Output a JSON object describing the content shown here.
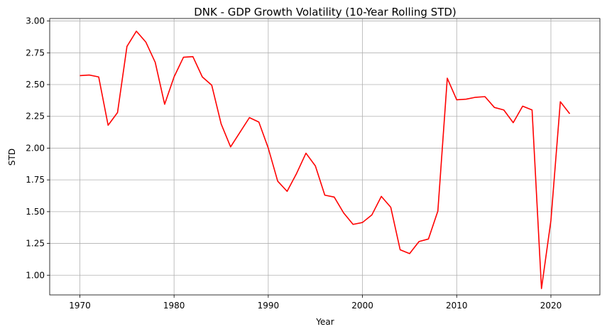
{
  "chart_data": {
    "type": "line",
    "title": "DNK - GDP Growth Volatility (10-Year Rolling STD)",
    "xlabel": "Year",
    "ylabel": "STD",
    "xlim": [
      1966.8,
      2025.2
    ],
    "ylim": [
      0.845,
      3.02
    ],
    "xticks": [
      1970,
      1980,
      1990,
      2000,
      2010,
      2020
    ],
    "yticks": [
      1.0,
      1.25,
      1.5,
      1.75,
      2.0,
      2.25,
      2.5,
      2.75,
      3.0
    ],
    "grid": true,
    "series": [
      {
        "color": "#ff0000",
        "x": [
          1970,
          1971,
          1972,
          1973,
          1974,
          1975,
          1976,
          1977,
          1978,
          1979,
          1980,
          1981,
          1982,
          1983,
          1984,
          1985,
          1986,
          1987,
          1988,
          1989,
          1990,
          1991,
          1992,
          1993,
          1994,
          1995,
          1996,
          1997,
          1998,
          1999,
          2000,
          2001,
          2002,
          2003,
          2004,
          2005,
          2006,
          2007,
          2008,
          2009,
          2010,
          2011,
          2012,
          2013,
          2014,
          2015,
          2016,
          2017,
          2018,
          2019,
          2020,
          2021,
          2022
        ],
        "y": [
          2.57,
          2.575,
          2.56,
          2.18,
          2.28,
          2.8,
          2.92,
          2.835,
          2.675,
          2.345,
          2.56,
          2.715,
          2.72,
          2.56,
          2.495,
          2.19,
          2.01,
          2.125,
          2.24,
          2.205,
          2.0,
          1.74,
          1.66,
          1.8,
          1.96,
          1.86,
          1.63,
          1.615,
          1.49,
          1.4,
          1.415,
          1.475,
          1.62,
          1.535,
          1.2,
          1.17,
          1.265,
          1.285,
          1.505,
          2.55,
          2.38,
          2.385,
          2.4,
          2.405,
          2.32,
          2.3,
          2.2,
          2.33,
          2.3,
          0.895,
          1.43,
          2.365,
          2.27
        ]
      }
    ]
  }
}
